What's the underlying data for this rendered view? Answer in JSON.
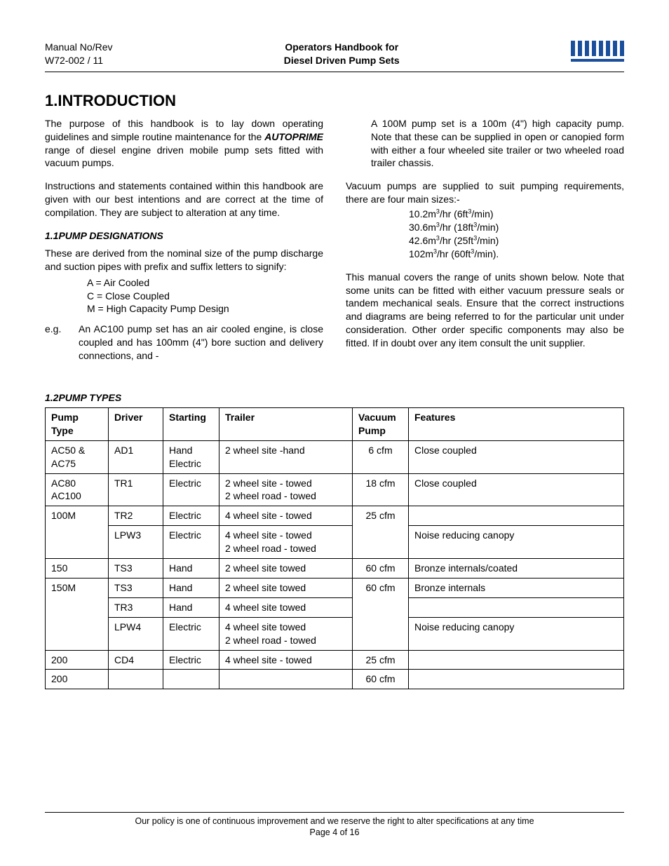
{
  "header": {
    "manual_label": "Manual No/Rev",
    "manual_no": "W72-002 / 11",
    "title_l1": "Operators Handbook for",
    "title_l2": "Diesel Driven Pump Sets",
    "logo_color": "#1b4f9c"
  },
  "intro_heading": "1.INTRODUCTION",
  "col1": {
    "p1_a": "The purpose of this handbook is to lay down operating guidelines and simple routine maintenance for the ",
    "p1_b": "AUTOPRIME",
    "p1_c": " range of diesel engine driven mobile pump sets fitted with vacuum pumps.",
    "p2": "Instructions and statements contained within this handbook are given with our best intentions and are correct at the time of compilation.  They are subject to alteration at any time.",
    "h1_1": "1.1PUMP DESIGNATIONS",
    "p3": "These are derived from the nominal size of the pump discharge and suction pipes with prefix and suffix letters to signify:",
    "des_a": "A = Air Cooled",
    "des_c": "C = Close Coupled",
    "des_m": "M = High Capacity Pump Design",
    "eg_label": "e.g.",
    "eg_text": "An AC100 pump set has an air cooled engine, is close coupled and has 100mm (4\") bore suction and delivery connections, and -"
  },
  "col2": {
    "p1": "A 100M pump set is a 100m (4\") high capacity pump.  Note that these can be supplied in open or canopied form with either a four wheeled site trailer or two wheeled road trailer chassis.",
    "p2": "Vacuum pumps are supplied to suit pumping requirements, there are four main sizes:-",
    "sizes": [
      {
        "m": "10.2m",
        "hr": "/hr (6ft",
        "min": "/min)"
      },
      {
        "m": "30.6m",
        "hr": "/hr (18ft",
        "min": "/min)"
      },
      {
        "m": "42.6m",
        "hr": "/hr (25ft",
        "min": "/min)"
      },
      {
        "m": "102m",
        "hr": "/hr (60ft",
        "min": "/min)."
      }
    ],
    "p3": "This manual covers the range of units shown below. Note that some units can be fitted with either vacuum pressure seals or tandem mechanical seals. Ensure that the correct instructions and diagrams are being referred to for the particular unit under consideration. Other order specific components may also be fitted. If in doubt over any item consult the unit supplier."
  },
  "h1_2": "1.2PUMP TYPES",
  "table": {
    "headers": [
      "Pump Type",
      "Driver",
      "Starting",
      "Trailer",
      "Vacuum Pump",
      "Features"
    ],
    "rows": [
      {
        "ptype": "AC50 &\nAC75",
        "driver": "AD1",
        "start": "Hand\nElectric",
        "trailer": "2 wheel site -hand",
        "vac": "6 cfm",
        "feat": "Close coupled"
      },
      {
        "ptype": "AC80\nAC100",
        "driver": "TR1",
        "start": "Electric",
        "trailer": "2 wheel site - towed\n2 wheel road - towed",
        "vac": "18 cfm",
        "feat": "Close coupled"
      },
      {
        "ptype": "100M",
        "multi": [
          {
            "driver": "TR2",
            "start": "Electric",
            "trailer": "4 wheel site - towed",
            "feat": ""
          },
          {
            "driver": "LPW3",
            "start": "Electric",
            "trailer": "4 wheel site - towed\n2 wheel road - towed",
            "feat": "Noise reducing canopy"
          }
        ],
        "vac": "25 cfm"
      },
      {
        "ptype": "150",
        "driver": "TS3",
        "start": "Hand",
        "trailer": "2 wheel site   towed",
        "vac": "60 cfm",
        "feat": "Bronze internals/coated"
      },
      {
        "ptype": "150M",
        "multi": [
          {
            "driver": "TS3",
            "start": "Hand",
            "trailer": "2 wheel site towed",
            "feat": "Bronze internals"
          },
          {
            "driver": "TR3",
            "start": "Hand",
            "trailer": "4 wheel site towed",
            "feat": ""
          },
          {
            "driver": "LPW4",
            "start": "Electric",
            "trailer": "4 wheel site towed\n2 wheel road - towed",
            "feat": "Noise reducing canopy"
          }
        ],
        "vac": "60 cfm"
      },
      {
        "ptype": "200",
        "driver": "CD4",
        "start": "Electric",
        "trailer": "4 wheel site - towed",
        "vac": "25 cfm",
        "feat": ""
      },
      {
        "ptype": "200",
        "driver": "",
        "start": "",
        "trailer": "",
        "vac": "60 cfm",
        "feat": ""
      }
    ]
  },
  "footer": {
    "policy": "Our policy is one of continuous improvement and we reserve the right to alter specifications at any time",
    "page": "Page 4 of 16"
  }
}
